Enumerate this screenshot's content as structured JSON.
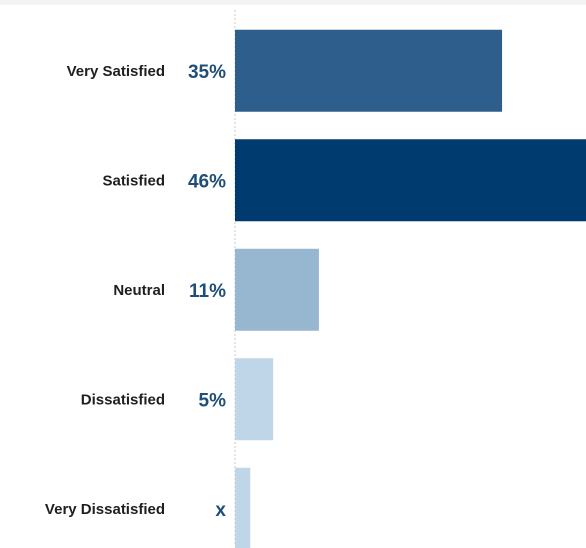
{
  "chart_data": {
    "type": "bar",
    "orientation": "horizontal",
    "categories": [
      "Very Satisfied",
      "Satisfied",
      "Neutral",
      "Dissatisfied",
      "Very Dissatisfied"
    ],
    "values": [
      35,
      46,
      11,
      5,
      2
    ],
    "value_labels": [
      "35%",
      "46%",
      "11%",
      "5%",
      "x"
    ],
    "xlim": [
      0,
      46
    ],
    "colors": [
      "#2e5f8c",
      "#003b6f",
      "#97b7d1",
      "#bed6e8",
      "#bed6e8"
    ],
    "value_label_color": "#1f4e79",
    "category_label_color": "#1f1f1f",
    "gridlines": false
  }
}
